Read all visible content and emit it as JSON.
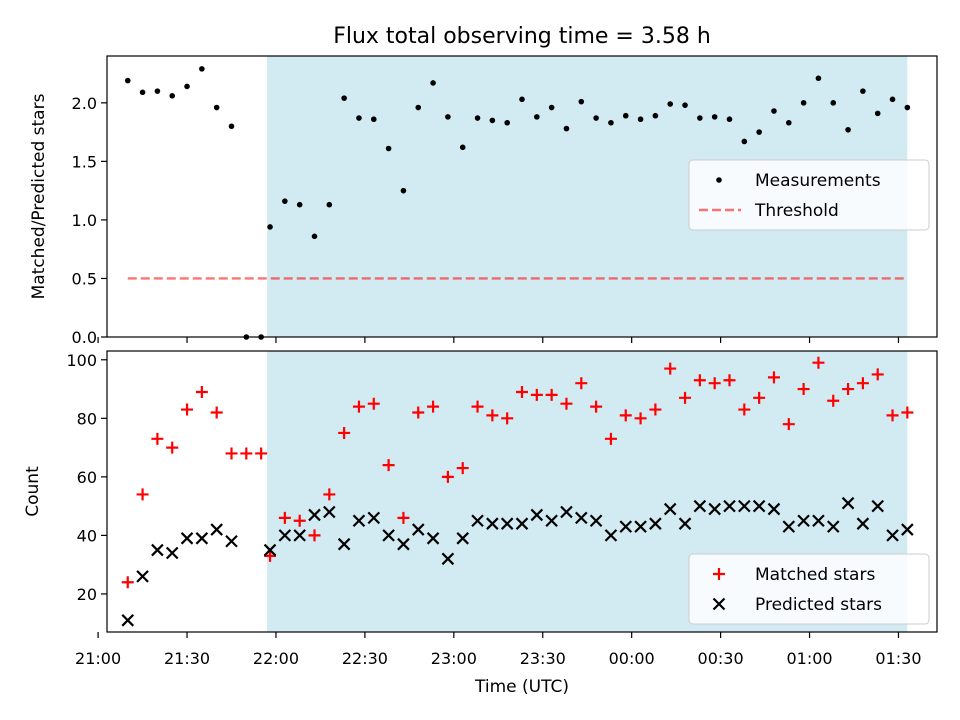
{
  "title": "Flux total observing time = 3.58 h",
  "colors": {
    "highlight": "#add8e6",
    "measure": "#000000",
    "threshold": "#ff0000",
    "matched": "#ff0000",
    "predicted": "#000000"
  },
  "x_axis": {
    "label": "Time (UTC)",
    "ticks": [
      "21:00",
      "21:30",
      "22:00",
      "22:30",
      "23:00",
      "23:30",
      "00:00",
      "00:30",
      "01:00",
      "01:30"
    ]
  },
  "chart_data": [
    {
      "type": "scatter",
      "ylabel": "Matched/Predicted stars",
      "ylim": [
        0,
        2.4
      ],
      "yticks": [
        "0.0",
        "0.5",
        "1.0",
        "1.5",
        "2.0"
      ],
      "xlim": [
        "21:03",
        "01:43"
      ],
      "highlight_span": [
        "21:57",
        "01:33"
      ],
      "legend": {
        "placement": "center-right",
        "entries": [
          "Measurements",
          "Threshold"
        ]
      },
      "threshold": {
        "name": "Threshold",
        "value": 0.5,
        "x_range": [
          "21:10",
          "01:33"
        ]
      },
      "series": [
        {
          "name": "Measurements",
          "x": [
            "21:10",
            "21:15",
            "21:20",
            "21:25",
            "21:30",
            "21:35",
            "21:40",
            "21:45",
            "21:50",
            "21:55",
            "21:58",
            "22:03",
            "22:08",
            "22:13",
            "22:18",
            "22:23",
            "22:28",
            "22:33",
            "22:38",
            "22:43",
            "22:48",
            "22:53",
            "22:58",
            "23:03",
            "23:08",
            "23:13",
            "23:18",
            "23:23",
            "23:28",
            "23:33",
            "23:38",
            "23:43",
            "23:48",
            "23:53",
            "23:58",
            "00:03",
            "00:08",
            "00:13",
            "00:18",
            "00:23",
            "00:28",
            "00:33",
            "00:38",
            "00:43",
            "00:48",
            "00:53",
            "00:58",
            "01:03",
            "01:08",
            "01:13",
            "01:18",
            "01:23",
            "01:28",
            "01:33"
          ],
          "values": [
            2.19,
            2.09,
            2.1,
            2.06,
            2.14,
            2.29,
            1.96,
            1.8,
            0.0,
            0.0,
            0.94,
            1.16,
            1.13,
            0.86,
            1.13,
            2.04,
            1.87,
            1.86,
            1.61,
            1.25,
            1.96,
            2.17,
            1.88,
            1.62,
            1.87,
            1.85,
            1.83,
            2.03,
            1.88,
            1.96,
            1.78,
            2.01,
            1.87,
            1.83,
            1.89,
            1.86,
            1.89,
            1.99,
            1.98,
            1.87,
            1.88,
            1.86,
            1.67,
            1.75,
            1.93,
            1.83,
            2.0,
            2.21,
            2.0,
            1.77,
            2.1,
            1.91,
            2.03,
            1.96
          ]
        }
      ]
    },
    {
      "type": "scatter",
      "ylabel": "Count",
      "ylim": [
        7,
        103
      ],
      "yticks": [
        "20",
        "40",
        "60",
        "80",
        "100"
      ],
      "xlim": [
        "21:03",
        "01:43"
      ],
      "highlight_span": [
        "21:57",
        "01:33"
      ],
      "legend": {
        "placement": "bottom-right",
        "entries": [
          "Matched stars",
          "Predicted stars"
        ]
      },
      "series": [
        {
          "name": "Matched stars",
          "x": [
            "21:10",
            "21:15",
            "21:20",
            "21:25",
            "21:30",
            "21:35",
            "21:40",
            "21:45",
            "21:50",
            "21:55",
            "21:58",
            "22:03",
            "22:08",
            "22:13",
            "22:18",
            "22:23",
            "22:28",
            "22:33",
            "22:38",
            "22:43",
            "22:48",
            "22:53",
            "22:58",
            "23:03",
            "23:08",
            "23:13",
            "23:18",
            "23:23",
            "23:28",
            "23:33",
            "23:38",
            "23:43",
            "23:48",
            "23:53",
            "23:58",
            "00:03",
            "00:08",
            "00:13",
            "00:18",
            "00:23",
            "00:28",
            "00:33",
            "00:38",
            "00:43",
            "00:48",
            "00:53",
            "00:58",
            "01:03",
            "01:08",
            "01:13",
            "01:18",
            "01:23",
            "01:28",
            "01:33"
          ],
          "values": [
            24,
            54,
            73,
            70,
            83,
            89,
            82,
            68,
            68,
            68,
            33,
            46,
            45,
            40,
            54,
            75,
            84,
            85,
            64,
            46,
            82,
            84,
            60,
            63,
            84,
            81,
            80,
            89,
            88,
            88,
            85,
            92,
            84,
            73,
            81,
            80,
            83,
            97,
            87,
            93,
            92,
            93,
            83,
            87,
            94,
            78,
            90,
            99,
            86,
            90,
            92,
            95,
            81,
            82
          ]
        },
        {
          "name": "Predicted stars",
          "x": [
            "21:10",
            "21:15",
            "21:20",
            "21:25",
            "21:30",
            "21:35",
            "21:40",
            "21:45",
            "21:58",
            "22:03",
            "22:08",
            "22:13",
            "22:18",
            "22:23",
            "22:28",
            "22:33",
            "22:38",
            "22:43",
            "22:48",
            "22:53",
            "22:58",
            "23:03",
            "23:08",
            "23:13",
            "23:18",
            "23:23",
            "23:28",
            "23:33",
            "23:38",
            "23:43",
            "23:48",
            "23:53",
            "23:58",
            "00:03",
            "00:08",
            "00:13",
            "00:18",
            "00:23",
            "00:28",
            "00:33",
            "00:38",
            "00:43",
            "00:48",
            "00:53",
            "00:58",
            "01:03",
            "01:08",
            "01:13",
            "01:18",
            "01:23",
            "01:28",
            "01:33"
          ],
          "values": [
            11,
            26,
            35,
            34,
            39,
            39,
            42,
            38,
            35,
            40,
            40,
            47,
            48,
            37,
            45,
            46,
            40,
            37,
            42,
            39,
            32,
            39,
            45,
            44,
            44,
            44,
            47,
            45,
            48,
            46,
            45,
            40,
            43,
            43,
            44,
            49,
            44,
            50,
            49,
            50,
            50,
            50,
            49,
            43,
            45,
            45,
            43,
            51,
            44,
            50,
            40,
            42
          ]
        }
      ]
    }
  ]
}
